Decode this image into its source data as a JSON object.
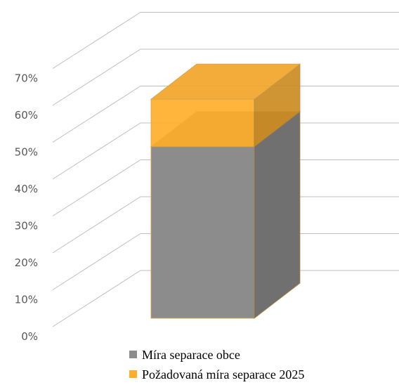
{
  "chart_data": {
    "type": "bar3d_stacked",
    "categories": [
      null
    ],
    "series": [
      {
        "name": "Míra separace obce",
        "color": "#8c8c8c",
        "values": [
          47
        ]
      },
      {
        "name": "Požadovaná míra separace 2025",
        "color": "#ffae2b",
        "values": [
          13
        ]
      }
    ],
    "ylim": [
      0,
      70
    ],
    "yticks": [
      {
        "value": 0,
        "label": "0%"
      },
      {
        "value": 10,
        "label": "10%"
      },
      {
        "value": 20,
        "label": "20%"
      },
      {
        "value": 30,
        "label": "30%"
      },
      {
        "value": 40,
        "label": "40%"
      },
      {
        "value": 50,
        "label": "50%"
      },
      {
        "value": 60,
        "label": "60%"
      },
      {
        "value": 70,
        "label": "70%"
      }
    ],
    "grid": true,
    "legend": "bottom"
  }
}
